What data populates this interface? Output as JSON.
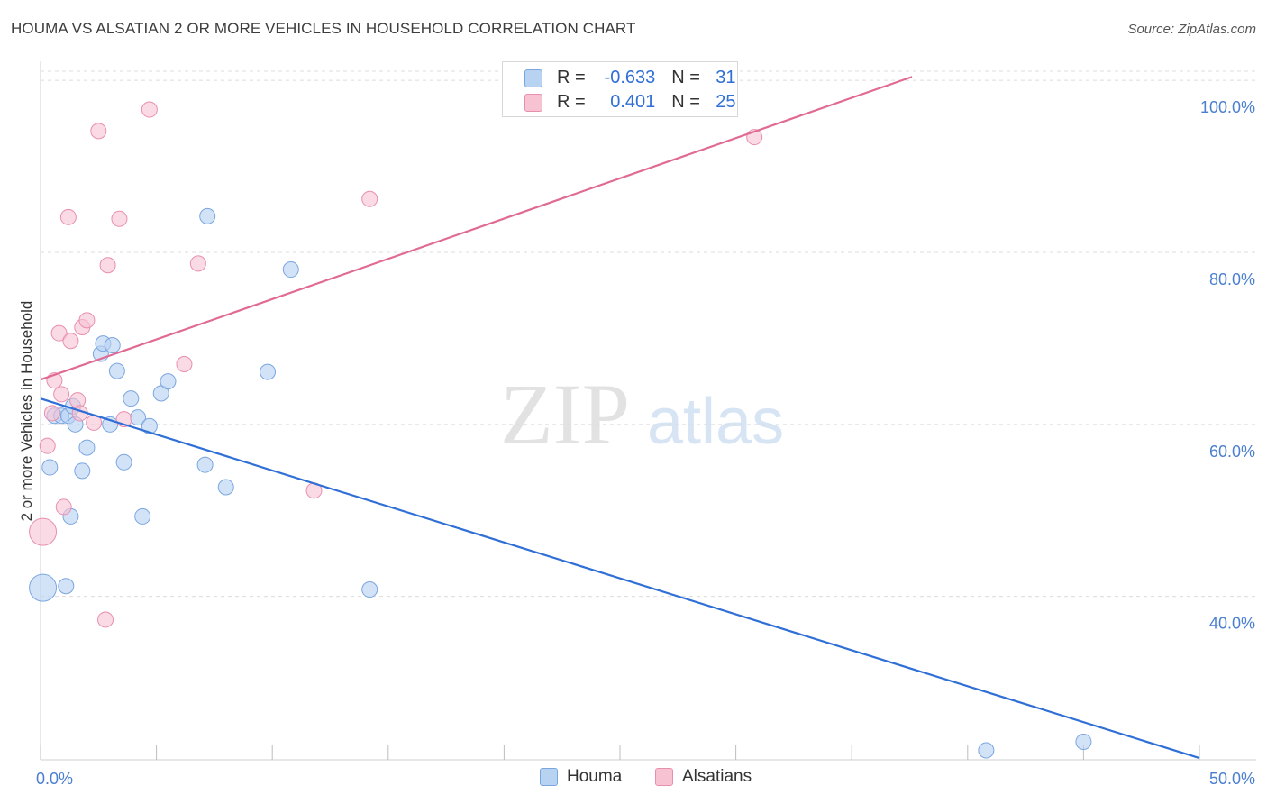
{
  "header": {
    "title": "HOUMA VS ALSATIAN 2 OR MORE VEHICLES IN HOUSEHOLD CORRELATION CHART",
    "source": "Source: ZipAtlas.com"
  },
  "watermark": {
    "zip": "ZIP",
    "atlas": "atlas"
  },
  "colors": {
    "blue_fill": "#b8d2f2",
    "blue_stroke": "#7aa6e0",
    "blue_line": "#2f6fd6",
    "pink_fill": "#f7c3d3",
    "pink_stroke": "#e98fae",
    "pink_line": "#e06a93",
    "tick_text": "#4a7fd0",
    "grid": "#dcdcdc"
  },
  "legend_top": {
    "rows": [
      {
        "r_label": "R =",
        "r_value": "-0.633",
        "n_label": "N =",
        "n_value": "31",
        "series": "houma"
      },
      {
        "r_label": "R =",
        "r_value": "0.401",
        "n_label": "N =",
        "n_value": "25",
        "series": "alsatians"
      }
    ]
  },
  "legend_bottom": {
    "houma": "Houma",
    "alsatians": "Alsatians"
  },
  "chart_data": {
    "type": "scatter",
    "title": "HOUMA VS ALSATIAN 2 OR MORE VEHICLES IN HOUSEHOLD CORRELATION CHART",
    "xlabel": "",
    "ylabel": "2 or more Vehicles in Household",
    "xlim": [
      0,
      50
    ],
    "ylim": [
      21,
      102
    ],
    "x_tick_labels": [
      {
        "value": 0,
        "label": "0.0%"
      },
      {
        "value": 50,
        "label": "50.0%"
      }
    ],
    "x_minor_ticks": [
      0,
      5,
      10,
      15,
      20,
      25,
      30,
      35,
      40,
      45,
      50
    ],
    "y_ticks": [
      {
        "value": 40,
        "label": "40.0%"
      },
      {
        "value": 60,
        "label": "60.0%"
      },
      {
        "value": 80,
        "label": "80.0%"
      },
      {
        "value": 100,
        "label": "100.0%"
      }
    ],
    "series": [
      {
        "name": "Houma",
        "color": "#7aa6e0",
        "r": -0.633,
        "n": 31,
        "trend": {
          "x": [
            0,
            50
          ],
          "y": [
            63.0,
            21.2
          ]
        },
        "points": [
          {
            "x": 0.1,
            "y": 41.0,
            "size": "large"
          },
          {
            "x": 0.4,
            "y": 55.0
          },
          {
            "x": 0.6,
            "y": 61.0
          },
          {
            "x": 0.9,
            "y": 61.0
          },
          {
            "x": 1.1,
            "y": 41.2
          },
          {
            "x": 1.2,
            "y": 61.0
          },
          {
            "x": 1.3,
            "y": 49.3
          },
          {
            "x": 1.4,
            "y": 62.1
          },
          {
            "x": 1.5,
            "y": 60.0
          },
          {
            "x": 1.8,
            "y": 54.6
          },
          {
            "x": 2.0,
            "y": 57.3
          },
          {
            "x": 2.6,
            "y": 68.2
          },
          {
            "x": 2.7,
            "y": 69.4
          },
          {
            "x": 3.0,
            "y": 60.0
          },
          {
            "x": 3.1,
            "y": 69.2
          },
          {
            "x": 3.3,
            "y": 66.2
          },
          {
            "x": 3.6,
            "y": 55.6
          },
          {
            "x": 3.9,
            "y": 63.0
          },
          {
            "x": 4.2,
            "y": 60.8
          },
          {
            "x": 4.4,
            "y": 49.3
          },
          {
            "x": 4.7,
            "y": 59.8
          },
          {
            "x": 5.2,
            "y": 63.6
          },
          {
            "x": 5.5,
            "y": 65.0
          },
          {
            "x": 7.1,
            "y": 55.3
          },
          {
            "x": 7.2,
            "y": 84.2
          },
          {
            "x": 8.0,
            "y": 52.7
          },
          {
            "x": 9.8,
            "y": 66.1
          },
          {
            "x": 10.8,
            "y": 78.0
          },
          {
            "x": 14.2,
            "y": 40.8
          },
          {
            "x": 40.8,
            "y": 22.1
          },
          {
            "x": 45.0,
            "y": 23.1
          }
        ]
      },
      {
        "name": "Alsatians",
        "color": "#e98fae",
        "r": 0.401,
        "n": 25,
        "trend": {
          "x": [
            0,
            37.6
          ],
          "y": [
            65.2,
            100.4
          ]
        },
        "points": [
          {
            "x": 0.1,
            "y": 47.5,
            "size": "large"
          },
          {
            "x": 0.3,
            "y": 57.5
          },
          {
            "x": 0.5,
            "y": 61.3
          },
          {
            "x": 0.6,
            "y": 65.1
          },
          {
            "x": 0.8,
            "y": 70.6
          },
          {
            "x": 0.9,
            "y": 63.5
          },
          {
            "x": 1.0,
            "y": 50.4
          },
          {
            "x": 1.2,
            "y": 84.1
          },
          {
            "x": 1.3,
            "y": 69.7
          },
          {
            "x": 1.6,
            "y": 62.8
          },
          {
            "x": 1.7,
            "y": 61.3
          },
          {
            "x": 1.8,
            "y": 71.3
          },
          {
            "x": 2.0,
            "y": 72.1
          },
          {
            "x": 2.3,
            "y": 60.2
          },
          {
            "x": 2.5,
            "y": 94.1
          },
          {
            "x": 2.8,
            "y": 37.3
          },
          {
            "x": 2.9,
            "y": 78.5
          },
          {
            "x": 3.4,
            "y": 83.9
          },
          {
            "x": 3.6,
            "y": 60.6
          },
          {
            "x": 4.7,
            "y": 96.6
          },
          {
            "x": 6.2,
            "y": 67.0
          },
          {
            "x": 6.8,
            "y": 78.7
          },
          {
            "x": 11.8,
            "y": 52.3
          },
          {
            "x": 14.2,
            "y": 86.2
          },
          {
            "x": 30.8,
            "y": 93.4
          }
        ]
      }
    ]
  }
}
